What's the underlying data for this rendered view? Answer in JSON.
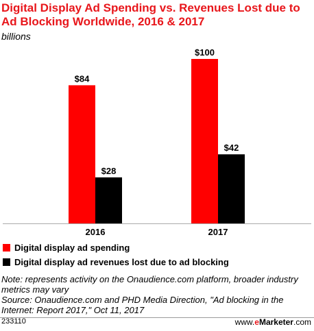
{
  "chart_data": {
    "type": "bar",
    "title": "Digital Display Ad Spending vs. Revenues Lost due to Ad Blocking Worldwide, 2016 & 2017",
    "subtitle": "billions",
    "categories": [
      "2016",
      "2017"
    ],
    "series": [
      {
        "name": "Digital display ad spending",
        "values": [
          84,
          100
        ],
        "data_labels": [
          "$84",
          "$100"
        ],
        "color": "#ff0000"
      },
      {
        "name": "Digital display ad revenues lost due to ad blocking",
        "values": [
          28,
          42
        ],
        "data_labels": [
          "$28",
          "$42"
        ],
        "color": "#000000"
      }
    ],
    "ylim": [
      0,
      100
    ],
    "grid": false,
    "legend_placement": "bottom-left"
  },
  "notes": {
    "note": "Note: represents activity on the Onaudience.com platform, broader industry metrics may vary",
    "source": "Source: Onaudience.com and PHD Media Direction, \"Ad blocking in the Internet: Report 2017,\" Oct 11, 2017"
  },
  "footer": {
    "id": "233110",
    "brand_prefix": "www.",
    "brand_accent": "e",
    "brand_main": "Marketer",
    "brand_suffix": ".com"
  },
  "colors": {
    "title": "#e8161b",
    "axis": "#aaaaaa",
    "footer_rule": "#9a9a9a"
  }
}
